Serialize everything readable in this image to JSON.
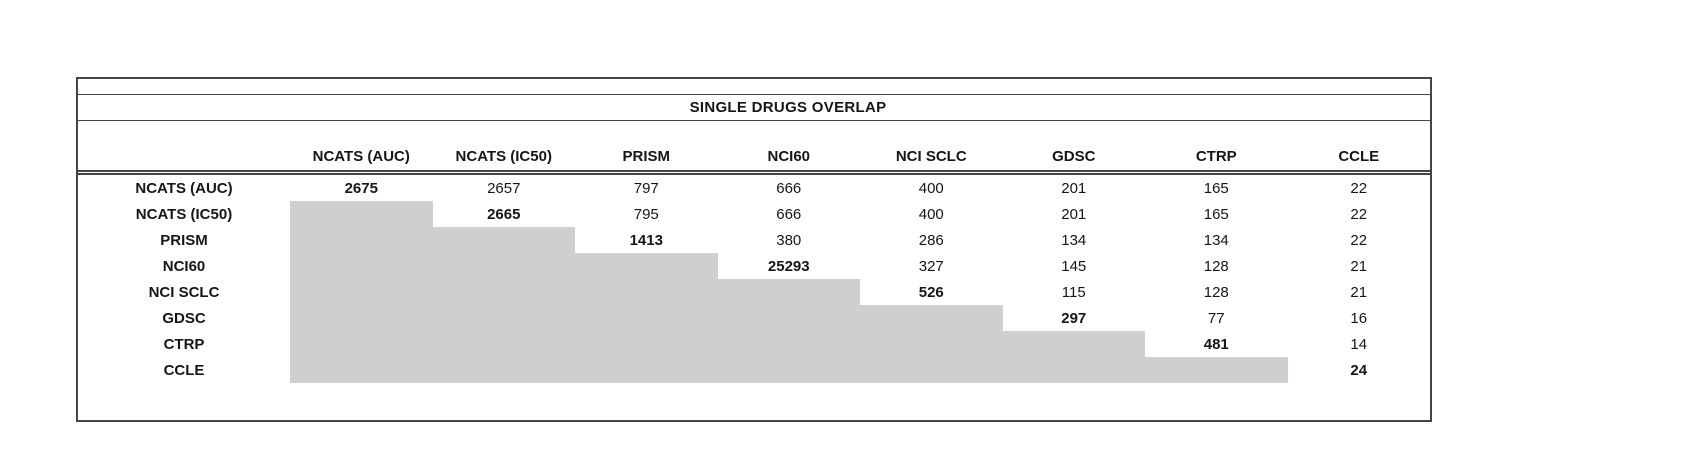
{
  "chart_data": {
    "type": "table",
    "title": "SINGLE DRUGS OVERLAP",
    "columns": [
      "NCATS (AUC)",
      "NCATS (IC50)",
      "PRISM",
      "NCI60",
      "NCI SCLC",
      "GDSC",
      "CTRP",
      "CCLE"
    ],
    "rows": [
      {
        "label": "NCATS (AUC)",
        "values": [
          2675,
          2657,
          797,
          666,
          400,
          201,
          165,
          22
        ]
      },
      {
        "label": "NCATS (IC50)",
        "values": [
          null,
          2665,
          795,
          666,
          400,
          201,
          165,
          22
        ]
      },
      {
        "label": "PRISM",
        "values": [
          null,
          null,
          1413,
          380,
          286,
          134,
          134,
          22
        ]
      },
      {
        "label": "NCI60",
        "values": [
          null,
          null,
          null,
          25293,
          327,
          145,
          128,
          21
        ]
      },
      {
        "label": "NCI SCLC",
        "values": [
          null,
          null,
          null,
          null,
          526,
          115,
          128,
          21
        ]
      },
      {
        "label": "GDSC",
        "values": [
          null,
          null,
          null,
          null,
          null,
          297,
          77,
          16
        ]
      },
      {
        "label": "CTRP",
        "values": [
          null,
          null,
          null,
          null,
          null,
          null,
          481,
          14
        ]
      },
      {
        "label": "CCLE",
        "values": [
          null,
          null,
          null,
          null,
          null,
          null,
          null,
          24
        ]
      }
    ],
    "layout": {
      "diagonal_values_bold": true,
      "lower_triangle": "shaded, empty",
      "header_underline": "double",
      "grid": "off"
    }
  },
  "colors": {
    "shaded_cell": "#d0cece",
    "border": "#454545",
    "text": "#161616"
  }
}
